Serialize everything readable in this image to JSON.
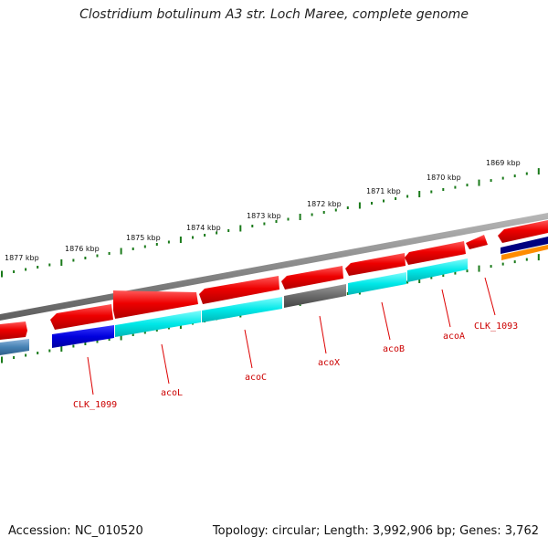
{
  "title": "Clostridium botulinum A3 str. Loch Maree, complete genome",
  "footer": {
    "accession": "Accession: NC_010520",
    "topology": "Topology: circular; Length: 3,992,906 bp; Genes: 3,762"
  },
  "scale": {
    "labels": [
      "1877 kbp",
      "1876 kbp",
      "1875 kbp",
      "1874 kbp",
      "1873 kbp",
      "1872 kbp",
      "1871 kbp",
      "1870 kbp",
      "1869 kbp"
    ]
  },
  "genes": {
    "labels": [
      "CLK_1099",
      "acoL",
      "acoC",
      "acoX",
      "acoB",
      "acoA",
      "CLK_1093"
    ]
  },
  "colors": {
    "backbone": "#8a8a8a",
    "forward_gene": "#e60000",
    "scale_tick": "#1a7a1a",
    "gene_label": "#cc0000",
    "cyan_gene": "#00e5e5",
    "blue_gene": "#0000dd",
    "gray_gene": "#666666",
    "steel_gene": "#4682b4",
    "orange_gene": "#ff8c00",
    "navy_gene": "#000080"
  }
}
